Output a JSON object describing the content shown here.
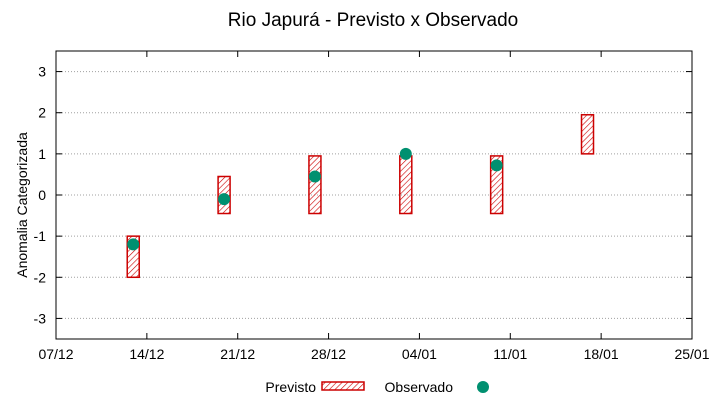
{
  "chart_data": {
    "type": "scatter",
    "title": "Rio Japurá - Previsto x Observado",
    "xlabel": "",
    "ylabel": "Anomalia Categorizada",
    "xlim": [
      0,
      7
    ],
    "ylim": [
      -3.5,
      3.5
    ],
    "x_ticks": [
      "07/12",
      "14/12",
      "21/12",
      "28/12",
      "04/01",
      "11/01",
      "18/01",
      "25/01"
    ],
    "y_ticks": [
      3,
      2,
      1,
      0,
      -1,
      -2,
      -3
    ],
    "y_tick_labels": [
      "3",
      "2",
      "1",
      "0",
      "-1",
      "-2",
      "-3"
    ],
    "grid": "horizontal-dotted",
    "legend_position": "bottom-center",
    "series": [
      {
        "name": "Previsto",
        "kind": "range",
        "color": "#cc0000",
        "points": [
          {
            "x": 0.85,
            "low": -2.0,
            "high": -1.0
          },
          {
            "x": 1.85,
            "low": -0.45,
            "high": 0.45
          },
          {
            "x": 2.85,
            "low": -0.45,
            "high": 0.95
          },
          {
            "x": 3.85,
            "low": -0.45,
            "high": 0.95
          },
          {
            "x": 4.85,
            "low": -0.45,
            "high": 0.95
          },
          {
            "x": 5.85,
            "low": 1.0,
            "high": 1.95
          }
        ]
      },
      {
        "name": "Observado",
        "kind": "point",
        "color": "#009070",
        "points": [
          {
            "x": 0.85,
            "y": -1.2
          },
          {
            "x": 1.85,
            "y": -0.1
          },
          {
            "x": 2.85,
            "y": 0.45
          },
          {
            "x": 3.85,
            "y": 1.0
          },
          {
            "x": 4.85,
            "y": 0.72
          }
        ]
      }
    ]
  }
}
